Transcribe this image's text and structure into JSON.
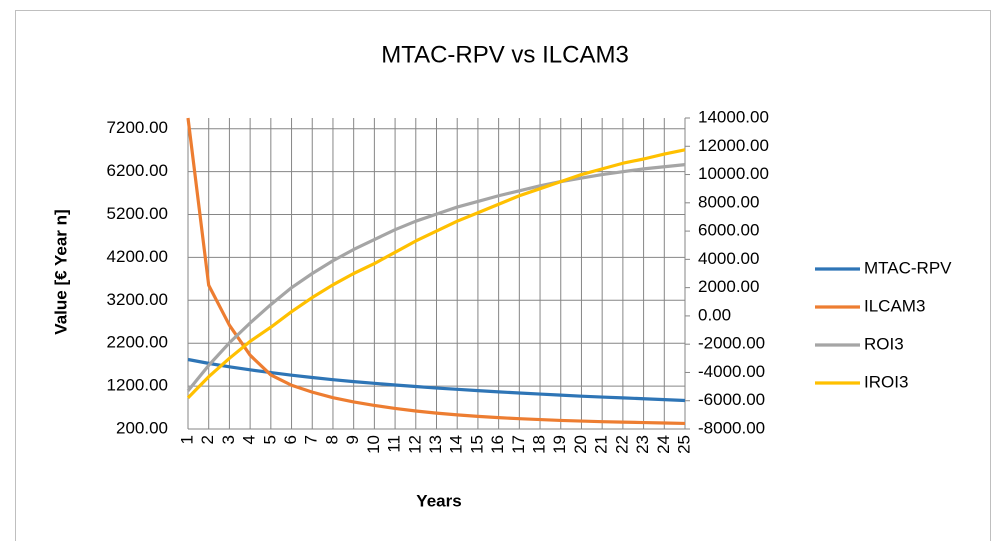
{
  "chart_data": {
    "type": "line",
    "title": "MTAC-RPV vs ILCAM3",
    "xlabel": "Years",
    "ylabel": "Value [€ Year n]",
    "categories": [
      "1",
      "2",
      "3",
      "4",
      "5",
      "6",
      "7",
      "8",
      "9",
      "10",
      "11",
      "12",
      "13",
      "14",
      "15",
      "16",
      "17",
      "18",
      "19",
      "20",
      "21",
      "22",
      "23",
      "24",
      "25"
    ],
    "series": [
      {
        "name": "MTAC-RPV",
        "color": "#2e75b6",
        "values": [
          1820,
          1730,
          1650,
          1580,
          1515,
          1455,
          1400,
          1350,
          1305,
          1265,
          1225,
          1190,
          1155,
          1125,
          1095,
          1065,
          1040,
          1015,
          990,
          965,
          945,
          925,
          905,
          885,
          865
        ]
      },
      {
        "name": "ILCAM3",
        "color": "#ed7d31",
        "values": [
          7450,
          3550,
          2620,
          1920,
          1460,
          1220,
          1060,
          930,
          830,
          750,
          680,
          620,
          570,
          530,
          495,
          465,
          440,
          420,
          400,
          385,
          370,
          360,
          350,
          340,
          330
        ]
      },
      {
        "name": "ROI3",
        "color": "#a5a5a5",
        "axis": "y2",
        "values": [
          -5300,
          -3500,
          -1900,
          -500,
          800,
          2000,
          3000,
          3900,
          4700,
          5400,
          6100,
          6700,
          7200,
          7700,
          8100,
          8500,
          8850,
          9200,
          9500,
          9750,
          10000,
          10200,
          10400,
          10550,
          10700
        ]
      },
      {
        "name": "IROI3",
        "color": "#ffc000",
        "axis": "y2",
        "values": [
          -5800,
          -4300,
          -3000,
          -1800,
          -800,
          300,
          1300,
          2200,
          3000,
          3700,
          4500,
          5300,
          6000,
          6700,
          7300,
          7900,
          8500,
          9000,
          9500,
          10000,
          10400,
          10800,
          11100,
          11450,
          11750
        ]
      }
    ],
    "ylim": [
      200,
      7450
    ],
    "yticks": [
      {
        "value": 200,
        "label": "200.00"
      },
      {
        "value": 1200,
        "label": "1200.00"
      },
      {
        "value": 2200,
        "label": "2200.00"
      },
      {
        "value": 3200,
        "label": "3200.00"
      },
      {
        "value": 4200,
        "label": "4200.00"
      },
      {
        "value": 5200,
        "label": "5200.00"
      },
      {
        "value": 6200,
        "label": "6200.00"
      },
      {
        "value": 7200,
        "label": "7200.00"
      }
    ],
    "y2lim": [
      -8000,
      14000
    ],
    "y2ticks": [
      {
        "value": -8000,
        "label": "-8000.00"
      },
      {
        "value": -6000,
        "label": "-6000.00"
      },
      {
        "value": -4000,
        "label": "-4000.00"
      },
      {
        "value": -2000,
        "label": "-2000.00"
      },
      {
        "value": 0,
        "label": "0.00"
      },
      {
        "value": 2000,
        "label": "2000.00"
      },
      {
        "value": 4000,
        "label": "4000.00"
      },
      {
        "value": 6000,
        "label": "6000.00"
      },
      {
        "value": 8000,
        "label": "8000.00"
      },
      {
        "value": 10000,
        "label": "10000.00"
      },
      {
        "value": 12000,
        "label": "12000.00"
      },
      {
        "value": 14000,
        "label": "14000.00"
      }
    ],
    "grid": true,
    "legend": "right"
  }
}
